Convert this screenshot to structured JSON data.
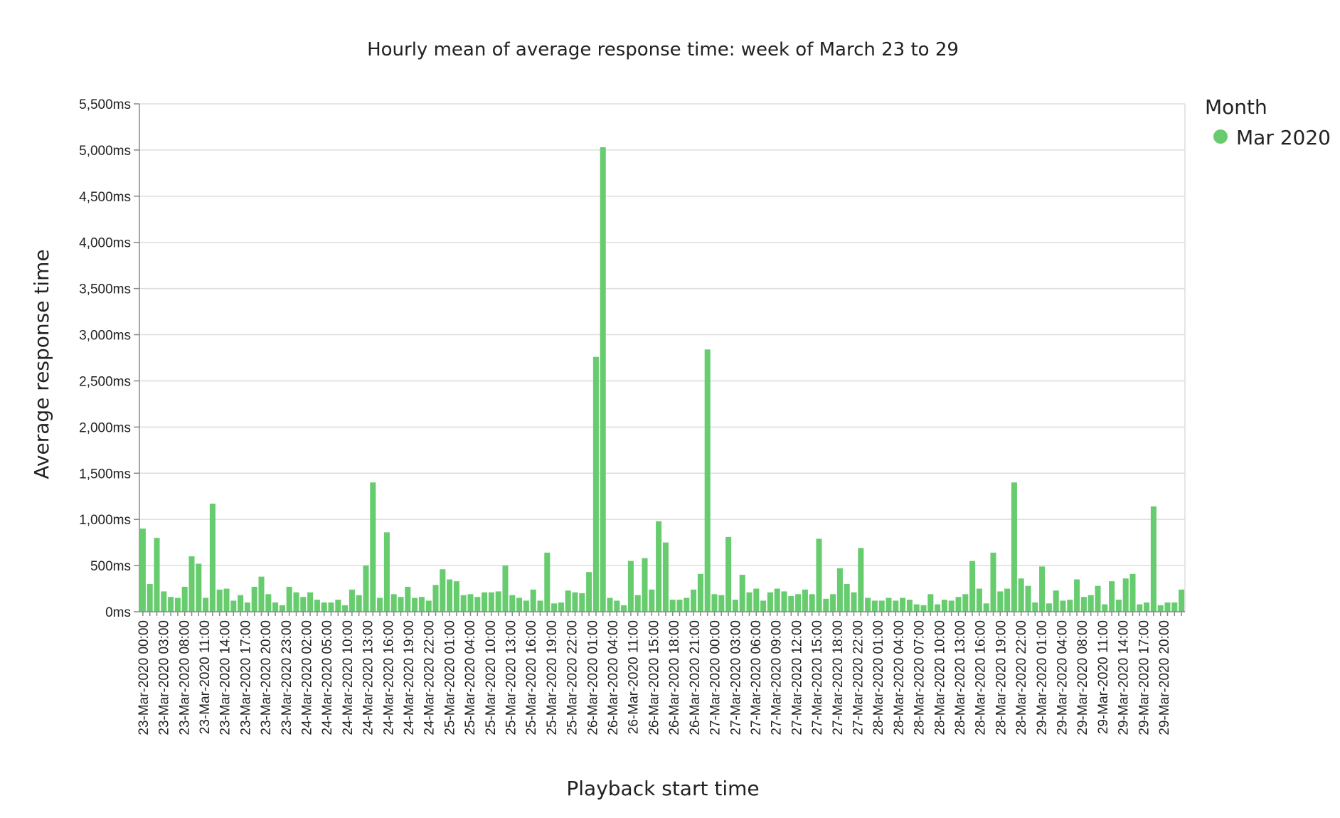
{
  "chart_data": {
    "type": "bar",
    "title": "Hourly mean of average response time: week of March 23 to 29",
    "xlabel": "Playback start time",
    "ylabel": "Average response time",
    "ylim": [
      0,
      5500
    ],
    "y_ticks": [
      0,
      500,
      1000,
      1500,
      2000,
      2500,
      3000,
      3500,
      4000,
      4500,
      5000,
      5500
    ],
    "y_tick_labels": [
      "0ms",
      "500ms",
      "1,000ms",
      "1,500ms",
      "2,000ms",
      "2,500ms",
      "3,000ms",
      "3,500ms",
      "4,000ms",
      "4,500ms",
      "5,000ms",
      "5,500ms"
    ],
    "x_tick_labels": [
      "23-Mar-2020 00:00",
      "23-Mar-2020 03:00",
      "23-Mar-2020 08:00",
      "23-Mar-2020 11:00",
      "23-Mar-2020 14:00",
      "23-Mar-2020 17:00",
      "23-Mar-2020 20:00",
      "23-Mar-2020 23:00",
      "24-Mar-2020 02:00",
      "24-Mar-2020 05:00",
      "24-Mar-2020 10:00",
      "24-Mar-2020 13:00",
      "24-Mar-2020 16:00",
      "24-Mar-2020 19:00",
      "24-Mar-2020 22:00",
      "25-Mar-2020 01:00",
      "25-Mar-2020 04:00",
      "25-Mar-2020 10:00",
      "25-Mar-2020 13:00",
      "25-Mar-2020 16:00",
      "25-Mar-2020 19:00",
      "25-Mar-2020 22:00",
      "26-Mar-2020 01:00",
      "26-Mar-2020 04:00",
      "26-Mar-2020 11:00",
      "26-Mar-2020 15:00",
      "26-Mar-2020 18:00",
      "26-Mar-2020 21:00",
      "27-Mar-2020 00:00",
      "27-Mar-2020 03:00",
      "27-Mar-2020 06:00",
      "27-Mar-2020 09:00",
      "27-Mar-2020 12:00",
      "27-Mar-2020 15:00",
      "27-Mar-2020 18:00",
      "27-Mar-2020 22:00",
      "28-Mar-2020 01:00",
      "28-Mar-2020 04:00",
      "28-Mar-2020 07:00",
      "28-Mar-2020 10:00",
      "28-Mar-2020 13:00",
      "28-Mar-2020 16:00",
      "28-Mar-2020 19:00",
      "28-Mar-2020 22:00",
      "29-Mar-2020 01:00",
      "29-Mar-2020 04:00",
      "29-Mar-2020 08:00",
      "29-Mar-2020 11:00",
      "29-Mar-2020 14:00",
      "29-Mar-2020 17:00",
      "29-Mar-2020 20:00"
    ],
    "series": [
      {
        "name": "Mar 2020",
        "color": "#66cc6e",
        "values": [
          900,
          300,
          800,
          220,
          160,
          150,
          270,
          600,
          520,
          150,
          1170,
          240,
          250,
          120,
          180,
          100,
          270,
          380,
          190,
          100,
          70,
          270,
          210,
          160,
          210,
          130,
          100,
          100,
          130,
          70,
          240,
          180,
          500,
          1400,
          150,
          860,
          190,
          160,
          270,
          150,
          160,
          120,
          290,
          460,
          350,
          330,
          180,
          190,
          160,
          210,
          210,
          220,
          500,
          180,
          150,
          120,
          240,
          120,
          640,
          90,
          100,
          230,
          210,
          200,
          430,
          2760,
          5030,
          150,
          120,
          70,
          550,
          180,
          580,
          240,
          980,
          750,
          130,
          130,
          150,
          240,
          410,
          2840,
          190,
          180,
          810,
          130,
          400,
          210,
          250,
          120,
          210,
          250,
          220,
          170,
          190,
          240,
          190,
          790,
          140,
          190,
          470,
          300,
          210,
          690,
          150,
          120,
          120,
          150,
          120,
          150,
          130,
          80,
          70,
          190,
          80,
          130,
          120,
          160,
          190,
          550,
          250,
          90,
          640,
          220,
          250,
          1400,
          360,
          280,
          100,
          490,
          90,
          230,
          120,
          130,
          350,
          160,
          180,
          280,
          80,
          330,
          130,
          360,
          410,
          80,
          100,
          1140,
          70,
          100,
          100,
          240
        ]
      }
    ],
    "legend": {
      "title": "Month",
      "position": "right",
      "entries": [
        {
          "label": "Mar 2020",
          "color": "#66cc6e"
        }
      ]
    },
    "grid": true
  }
}
